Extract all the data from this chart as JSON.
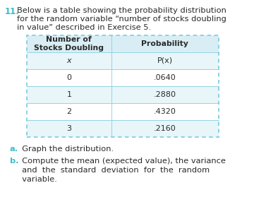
{
  "number": "11.",
  "intro_line1": "Below is a table showing the probability distribution",
  "intro_line2": "for the random variable “number of stocks doubling",
  "intro_line3": "in value” described in Exercise 5.",
  "col1_header": "Number of\nStocks Doubling",
  "col2_header": "Probability",
  "col1_sub": "x",
  "col2_sub": "P(x)",
  "rows": [
    [
      "0",
      ".0640"
    ],
    [
      "1",
      ".2880"
    ],
    [
      "2",
      ".4320"
    ],
    [
      "3",
      ".2160"
    ]
  ],
  "part_a_label": "a.",
  "part_a_text": "  Graph the distribution.",
  "part_b_label": "b.",
  "part_b_text_line1": "  Compute the mean (expected value), the variance",
  "part_b_text_line2": "  and  the  standard  deviation  for  the  random",
  "part_b_text_line3": "  variable.",
  "accent_color": "#3bbcd0",
  "table_bg_header": "#d9eef4",
  "table_bg_alt": "#e8f5f9",
  "table_bg_white": "#ffffff",
  "border_color": "#85cede",
  "text_color": "#2a2a2a",
  "bg_color": "#ffffff"
}
